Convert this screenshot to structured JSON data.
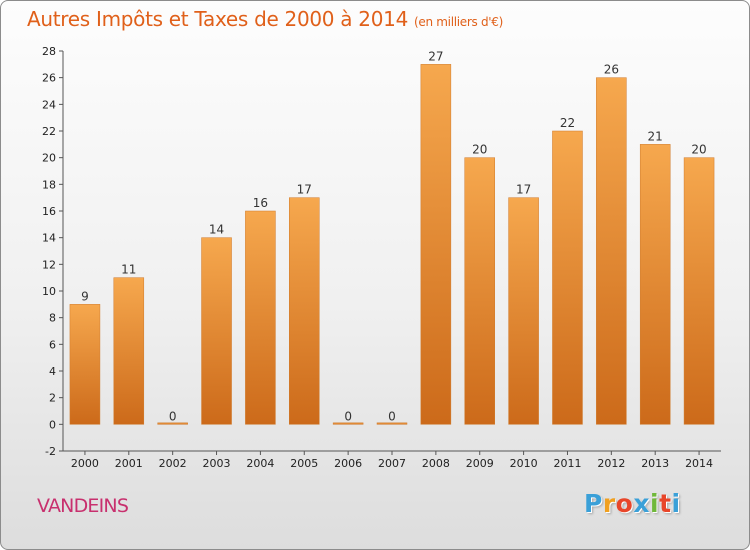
{
  "title": "Autres Impôts et Taxes de 2000 à 2014",
  "subtitle": "(en milliers d'€)",
  "place_name": "VANDEINS",
  "logo": {
    "letters": [
      "P",
      "r",
      "o",
      "x",
      "i",
      "t",
      "i"
    ],
    "colors": [
      "#3aa0d8",
      "#f0a020",
      "#e8462a",
      "#3aa0d8",
      "#70b83a",
      "#e8462a",
      "#3aa0d8"
    ]
  },
  "chart_data": {
    "type": "bar",
    "categories": [
      "2000",
      "2001",
      "2002",
      "2003",
      "2004",
      "2005",
      "2006",
      "2007",
      "2008",
      "2009",
      "2010",
      "2011",
      "2012",
      "2013",
      "2014"
    ],
    "values": [
      9,
      11,
      0,
      14,
      16,
      17,
      0,
      0,
      27,
      20,
      17,
      22,
      26,
      21,
      20
    ],
    "ylim": [
      -2,
      28
    ],
    "yticks": [
      -2,
      0,
      2,
      4,
      6,
      8,
      10,
      12,
      14,
      16,
      18,
      20,
      22,
      24,
      26,
      28
    ],
    "grid": false,
    "bar_color_light": "#f6a84e",
    "bar_color_dark": "#cc6a1a"
  }
}
